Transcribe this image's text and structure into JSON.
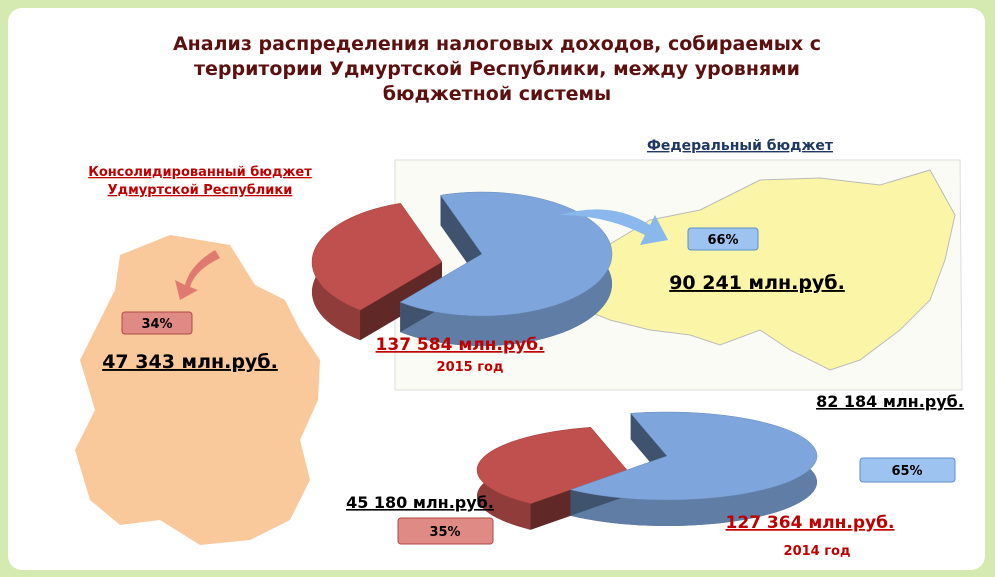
{
  "title": [
    "Анализ распределения налоговых доходов, собираемых с",
    "территории Удмуртской Республики, между уровнями",
    "бюджетной системы"
  ],
  "chart_data": [
    {
      "type": "pie",
      "categories": [
        [
          "Консолидированный бюджет",
          "Удмуртской Республики"
        ],
        [
          "Федеральный бюджет"
        ]
      ],
      "values": [
        34,
        66
      ],
      "value_labels": [
        "34%",
        "66%"
      ],
      "colors": [
        "#c0504d",
        "#7ea6dc"
      ],
      "amounts": [
        "47 343 млн.руб.",
        "90 241 млн.руб."
      ],
      "total": "137 584 млн.руб.",
      "year": "2015 год"
    },
    {
      "type": "pie",
      "categories": [
        null,
        null
      ],
      "values": [
        35,
        65
      ],
      "value_labels": [
        "35%",
        "65%"
      ],
      "colors": [
        "#c0504d",
        "#7ea6dc"
      ],
      "amounts": [
        "45 180 млн.руб.",
        "82 184 млн.руб."
      ],
      "total": "127 364 млн.руб.",
      "year": "2014 год"
    }
  ]
}
